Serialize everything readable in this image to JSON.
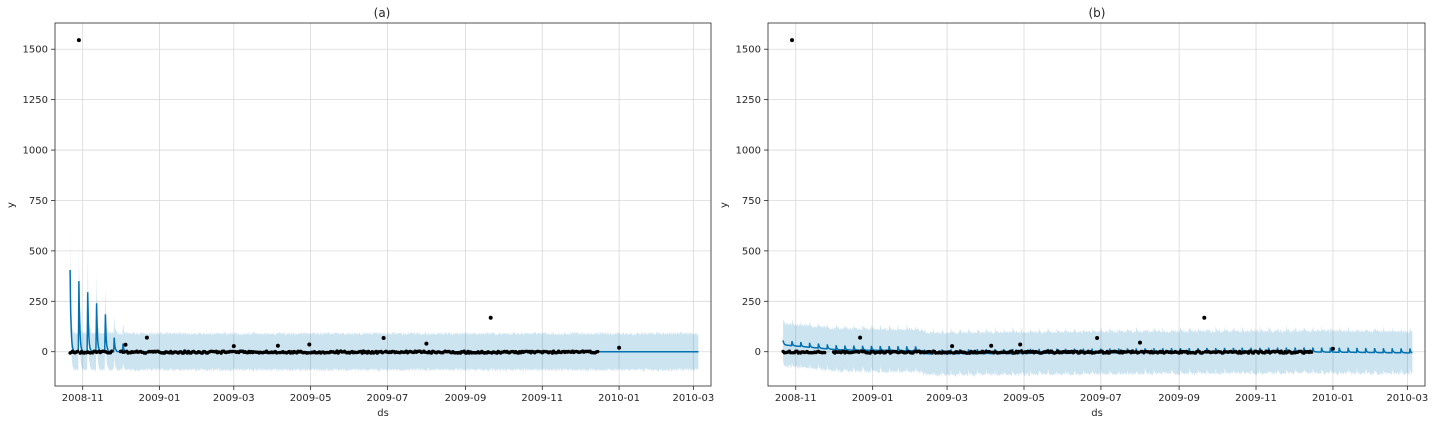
{
  "chart_data": [
    {
      "type": "line",
      "title": "(a)",
      "xlabel": "ds",
      "ylabel": "y",
      "xlim": [
        "2008-10-10",
        "2010-03-15"
      ],
      "ylim": [
        -170,
        1630
      ],
      "x_ticks": [
        "2008-11",
        "2009-01",
        "2009-03",
        "2009-05",
        "2009-07",
        "2009-09",
        "2009-11",
        "2010-01",
        "2010-03"
      ],
      "y_ticks": [
        0,
        250,
        500,
        750,
        1000,
        1250,
        1500
      ],
      "grid": true,
      "colors": {
        "forecast": "#0072b2",
        "band": "#0072b2",
        "observed": "#000000"
      },
      "observed_series": {
        "name": "",
        "start": "2008-10-22",
        "end": "2009-12-15",
        "gaps": [
          [
            "2008-11-25",
            "2008-11-30"
          ],
          [
            "2009-12-16",
            "2009-12-31"
          ]
        ]
      },
      "observed_outliers": [
        {
          "x": "2008-10-29",
          "y": 1545
        },
        {
          "x": "2008-12-05",
          "y": 35
        },
        {
          "x": "2008-12-22",
          "y": 70
        },
        {
          "x": "2009-03-01",
          "y": 28
        },
        {
          "x": "2009-04-05",
          "y": 30
        },
        {
          "x": "2009-04-30",
          "y": 36
        },
        {
          "x": "2009-06-28",
          "y": 68
        },
        {
          "x": "2009-08-01",
          "y": 40
        },
        {
          "x": "2009-09-21",
          "y": 168
        },
        {
          "x": "2010-01-01",
          "y": 20
        }
      ],
      "forecast": {
        "start": "2008-10-22",
        "end": "2010-03-05",
        "baseline": 0,
        "spikes": [
          {
            "x": "2008-10-22",
            "y": 405
          },
          {
            "x": "2008-10-29",
            "y": 350
          },
          {
            "x": "2008-11-05",
            "y": 295
          },
          {
            "x": "2008-11-12",
            "y": 240
          },
          {
            "x": "2008-11-19",
            "y": 185
          },
          {
            "x": "2008-11-26",
            "y": 70
          },
          {
            "x": "2008-12-03",
            "y": 40
          }
        ],
        "band_halfwidth": 90
      }
    },
    {
      "type": "line",
      "title": "(b)",
      "xlabel": "ds",
      "ylabel": "y",
      "xlim": [
        "2008-10-10",
        "2010-03-15"
      ],
      "ylim": [
        -170,
        1630
      ],
      "x_ticks": [
        "2008-11",
        "2009-01",
        "2009-03",
        "2009-05",
        "2009-07",
        "2009-09",
        "2009-11",
        "2010-01",
        "2010-03"
      ],
      "y_ticks": [
        0,
        250,
        500,
        750,
        1000,
        1250,
        1500
      ],
      "grid": true,
      "colors": {
        "forecast": "#0072b2",
        "band": "#0072b2",
        "observed": "#000000"
      },
      "observed_series": {
        "name": "",
        "start": "2008-10-22",
        "end": "2009-12-15",
        "gaps": [
          [
            "2008-11-25",
            "2008-11-30"
          ],
          [
            "2009-12-16",
            "2009-12-31"
          ]
        ]
      },
      "observed_outliers": [
        {
          "x": "2008-10-29",
          "y": 1545
        },
        {
          "x": "2008-12-22",
          "y": 70
        },
        {
          "x": "2009-03-05",
          "y": 28
        },
        {
          "x": "2009-04-05",
          "y": 30
        },
        {
          "x": "2009-04-28",
          "y": 36
        },
        {
          "x": "2009-06-28",
          "y": 68
        },
        {
          "x": "2009-08-01",
          "y": 45
        },
        {
          "x": "2009-09-21",
          "y": 168
        },
        {
          "x": "2010-01-01",
          "y": 15
        }
      ],
      "forecast": {
        "start": "2008-10-22",
        "end": "2010-03-05",
        "segments": [
          {
            "from": "2008-10-22",
            "to": "2008-12-05",
            "start_level": 40,
            "end_level": 15
          },
          {
            "from": "2008-12-05",
            "to": "2009-02-10",
            "start_level": 15,
            "end_level": 10
          },
          {
            "from": "2009-02-10",
            "to": "2009-12-15",
            "start_level": -5,
            "end_level": 5
          },
          {
            "from": "2009-12-15",
            "to": "2010-03-05",
            "start_level": 5,
            "end_level": 0
          }
        ],
        "weekly_amplitude": 22,
        "band_halfwidth": 105
      }
    }
  ]
}
